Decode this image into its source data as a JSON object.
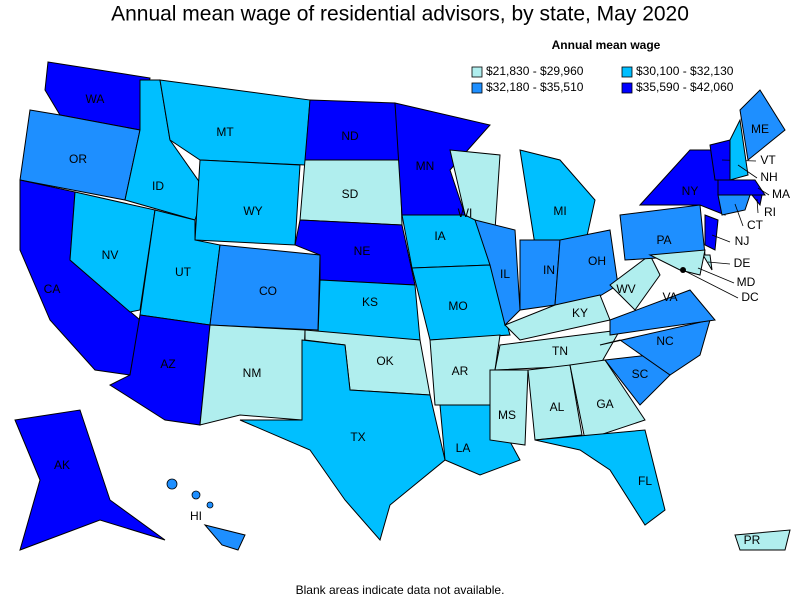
{
  "title": "Annual mean wage of residential advisors, by state, May 2020",
  "legend": {
    "title": "Annual mean wage",
    "items": [
      {
        "label": "$21,830 - $29,960",
        "color": "#b0eeee"
      },
      {
        "label": "$30,100 - $32,130",
        "color": "#00bfff"
      },
      {
        "label": "$32,180 - $35,510",
        "color": "#1e8fff"
      },
      {
        "label": "$35,590 - $42,060",
        "color": "#0000ff"
      }
    ]
  },
  "states": [
    {
      "label": "WA",
      "class": 3
    },
    {
      "label": "OR",
      "class": 2
    },
    {
      "label": "CA",
      "class": 3
    },
    {
      "label": "NV",
      "class": 1
    },
    {
      "label": "ID",
      "class": 1
    },
    {
      "label": "MT",
      "class": 1
    },
    {
      "label": "WY",
      "class": 1
    },
    {
      "label": "UT",
      "class": 1
    },
    {
      "label": "AZ",
      "class": 3
    },
    {
      "label": "CO",
      "class": 2
    },
    {
      "label": "NM",
      "class": 0
    },
    {
      "label": "ND",
      "class": 3
    },
    {
      "label": "SD",
      "class": 0
    },
    {
      "label": "NE",
      "class": 3
    },
    {
      "label": "KS",
      "class": 1
    },
    {
      "label": "OK",
      "class": 0
    },
    {
      "label": "TX",
      "class": 1
    },
    {
      "label": "MN",
      "class": 3
    },
    {
      "label": "IA",
      "class": 1
    },
    {
      "label": "MO",
      "class": 1
    },
    {
      "label": "AR",
      "class": 0
    },
    {
      "label": "LA",
      "class": 1
    },
    {
      "label": "WI",
      "class": 0
    },
    {
      "label": "MI",
      "class": 1
    },
    {
      "label": "IL",
      "class": 2
    },
    {
      "label": "IN",
      "class": 2
    },
    {
      "label": "OH",
      "class": 2
    },
    {
      "label": "KY",
      "class": 0
    },
    {
      "label": "TN",
      "class": 0
    },
    {
      "label": "MS",
      "class": 0
    },
    {
      "label": "AL",
      "class": 0
    },
    {
      "label": "GA",
      "class": 0
    },
    {
      "label": "FL",
      "class": 1
    },
    {
      "label": "SC",
      "class": 2
    },
    {
      "label": "NC",
      "class": 2
    },
    {
      "label": "VA",
      "class": 2
    },
    {
      "label": "WV",
      "class": 0
    },
    {
      "label": "PA",
      "class": 2
    },
    {
      "label": "NY",
      "class": 3
    },
    {
      "label": "VT",
      "class": 3
    },
    {
      "label": "NH",
      "class": 1
    },
    {
      "label": "ME",
      "class": 2
    },
    {
      "label": "MA",
      "class": 3
    },
    {
      "label": "RI",
      "class": 3
    },
    {
      "label": "CT",
      "class": 2
    },
    {
      "label": "NJ",
      "class": 3
    },
    {
      "label": "DE",
      "class": 0
    },
    {
      "label": "MD",
      "class": 0
    },
    {
      "label": "DC",
      "class": 0
    },
    {
      "label": "AK",
      "class": 3
    },
    {
      "label": "HI",
      "class": 2
    },
    {
      "label": "PR",
      "class": 0
    }
  ],
  "footnote": "Blank areas indicate data not available."
}
